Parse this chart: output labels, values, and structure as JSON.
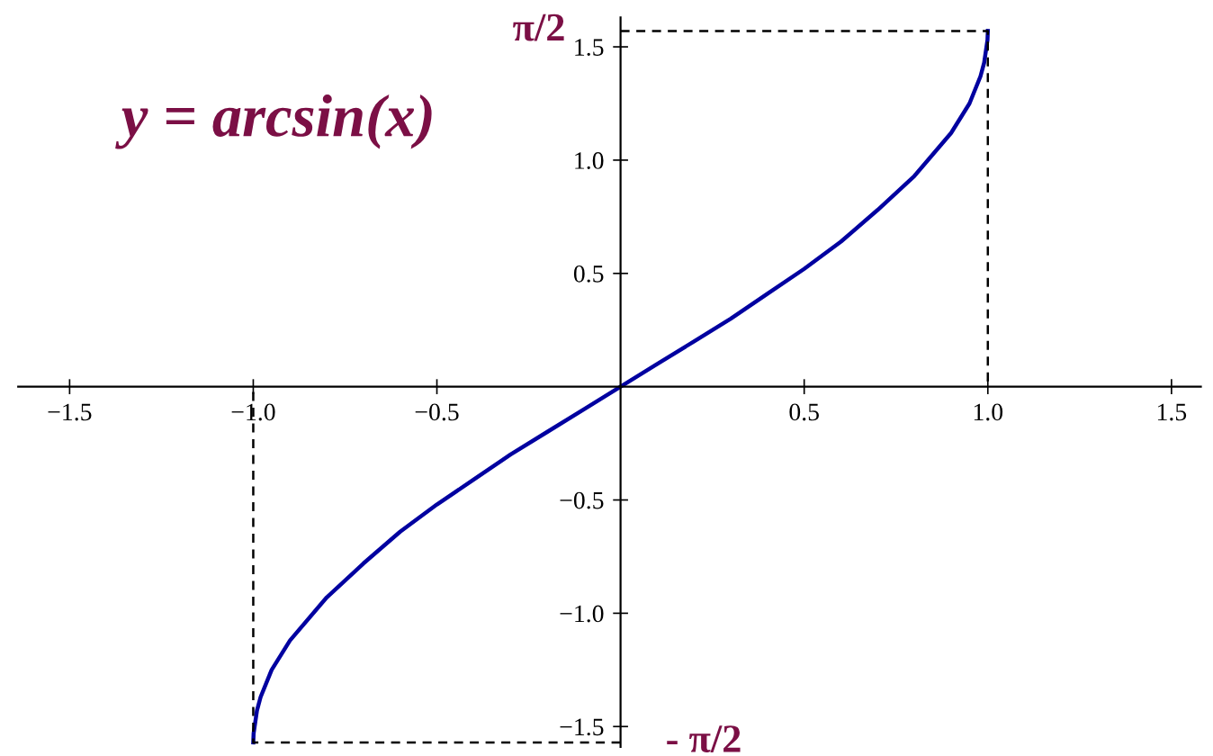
{
  "chart_data": {
    "type": "line",
    "title": "y = arcsin(x)",
    "xlim": [
      -1.64,
      1.58
    ],
    "ylim": [
      -1.59,
      1.63
    ],
    "xticks": [
      {
        "value": -1.5,
        "label": "−1.5"
      },
      {
        "value": -1.0,
        "label": "−1.0"
      },
      {
        "value": -0.5,
        "label": "−0.5"
      },
      {
        "value": 0.5,
        "label": "0.5"
      },
      {
        "value": 1.0,
        "label": "1.0"
      },
      {
        "value": 1.5,
        "label": "1.5"
      }
    ],
    "yticks": [
      {
        "value": -1.5,
        "label": "−1.5"
      },
      {
        "value": -1.0,
        "label": "−1.0"
      },
      {
        "value": -0.5,
        "label": "−0.5"
      },
      {
        "value": 0.5,
        "label": "0.5"
      },
      {
        "value": 1.0,
        "label": "1.0"
      },
      {
        "value": 1.5,
        "label": "1.5"
      }
    ],
    "grid": false,
    "legend": false,
    "series": [
      {
        "color": "#0000a0",
        "line_style": "solid",
        "x": [
          -1,
          -0.999,
          -0.99,
          -0.98,
          -0.95,
          -0.9,
          -0.8,
          -0.7,
          -0.6,
          -0.5,
          -0.4,
          -0.3,
          -0.2,
          -0.1,
          0,
          0.1,
          0.2,
          0.3,
          0.4,
          0.5,
          0.6,
          0.7,
          0.8,
          0.9,
          0.95,
          0.98,
          0.99,
          0.999,
          1
        ],
        "values": [
          -1.57,
          -1.53,
          -1.43,
          -1.37,
          -1.25,
          -1.12,
          -0.93,
          -0.78,
          -0.64,
          -0.52,
          -0.41,
          -0.3,
          -0.2,
          -0.1,
          0,
          0.1,
          0.2,
          0.3,
          0.41,
          0.52,
          0.64,
          0.78,
          0.93,
          1.12,
          1.25,
          1.37,
          1.43,
          1.53,
          1.57
        ]
      },
      {
        "color": "#000000",
        "line_style": "dashed",
        "x": [
          0,
          1,
          1
        ],
        "values": [
          1.57,
          1.57,
          0
        ]
      },
      {
        "color": "#000000",
        "line_style": "dashed",
        "x": [
          0,
          -1,
          -1
        ],
        "values": [
          -1.57,
          -1.57,
          0
        ]
      }
    ],
    "annotations": [
      {
        "text": "π/2",
        "x": 0,
        "y": 1.57
      },
      {
        "text": "- π/2",
        "x": 0,
        "y": -1.57
      }
    ]
  }
}
